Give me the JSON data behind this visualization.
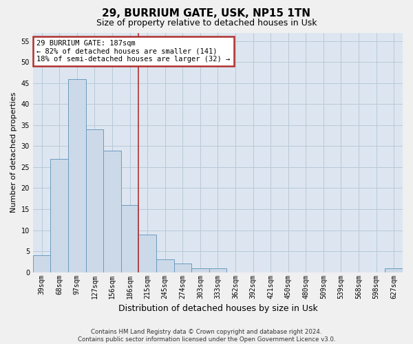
{
  "title": "29, BURRIUM GATE, USK, NP15 1TN",
  "subtitle": "Size of property relative to detached houses in Usk",
  "xlabel": "Distribution of detached houses by size in Usk",
  "ylabel": "Number of detached properties",
  "categories": [
    "39sqm",
    "68sqm",
    "97sqm",
    "127sqm",
    "156sqm",
    "186sqm",
    "215sqm",
    "245sqm",
    "274sqm",
    "303sqm",
    "333sqm",
    "362sqm",
    "392sqm",
    "421sqm",
    "450sqm",
    "480sqm",
    "509sqm",
    "539sqm",
    "568sqm",
    "598sqm",
    "627sqm"
  ],
  "values": [
    4,
    27,
    46,
    34,
    29,
    16,
    9,
    3,
    2,
    1,
    1,
    0,
    0,
    0,
    0,
    0,
    0,
    0,
    0,
    0,
    1
  ],
  "bar_color": "#ccd9e8",
  "bar_edge_color": "#6a9bbf",
  "grid_color": "#b8c8d8",
  "bg_color": "#dde6f0",
  "fig_bg_color": "#f0f0f0",
  "vline_color": "#b03030",
  "annotation_text": "29 BURRIUM GATE: 187sqm\n← 82% of detached houses are smaller (141)\n18% of semi-detached houses are larger (32) →",
  "annotation_box_color": "#b03030",
  "ylim": [
    0,
    57
  ],
  "yticks": [
    0,
    5,
    10,
    15,
    20,
    25,
    30,
    35,
    40,
    45,
    50,
    55
  ],
  "footnote": "Contains HM Land Registry data © Crown copyright and database right 2024.\nContains public sector information licensed under the Open Government Licence v3.0.",
  "title_fontsize": 11,
  "subtitle_fontsize": 9,
  "ylabel_fontsize": 8,
  "xlabel_fontsize": 9,
  "tick_fontsize": 7,
  "ann_fontsize": 7.5
}
